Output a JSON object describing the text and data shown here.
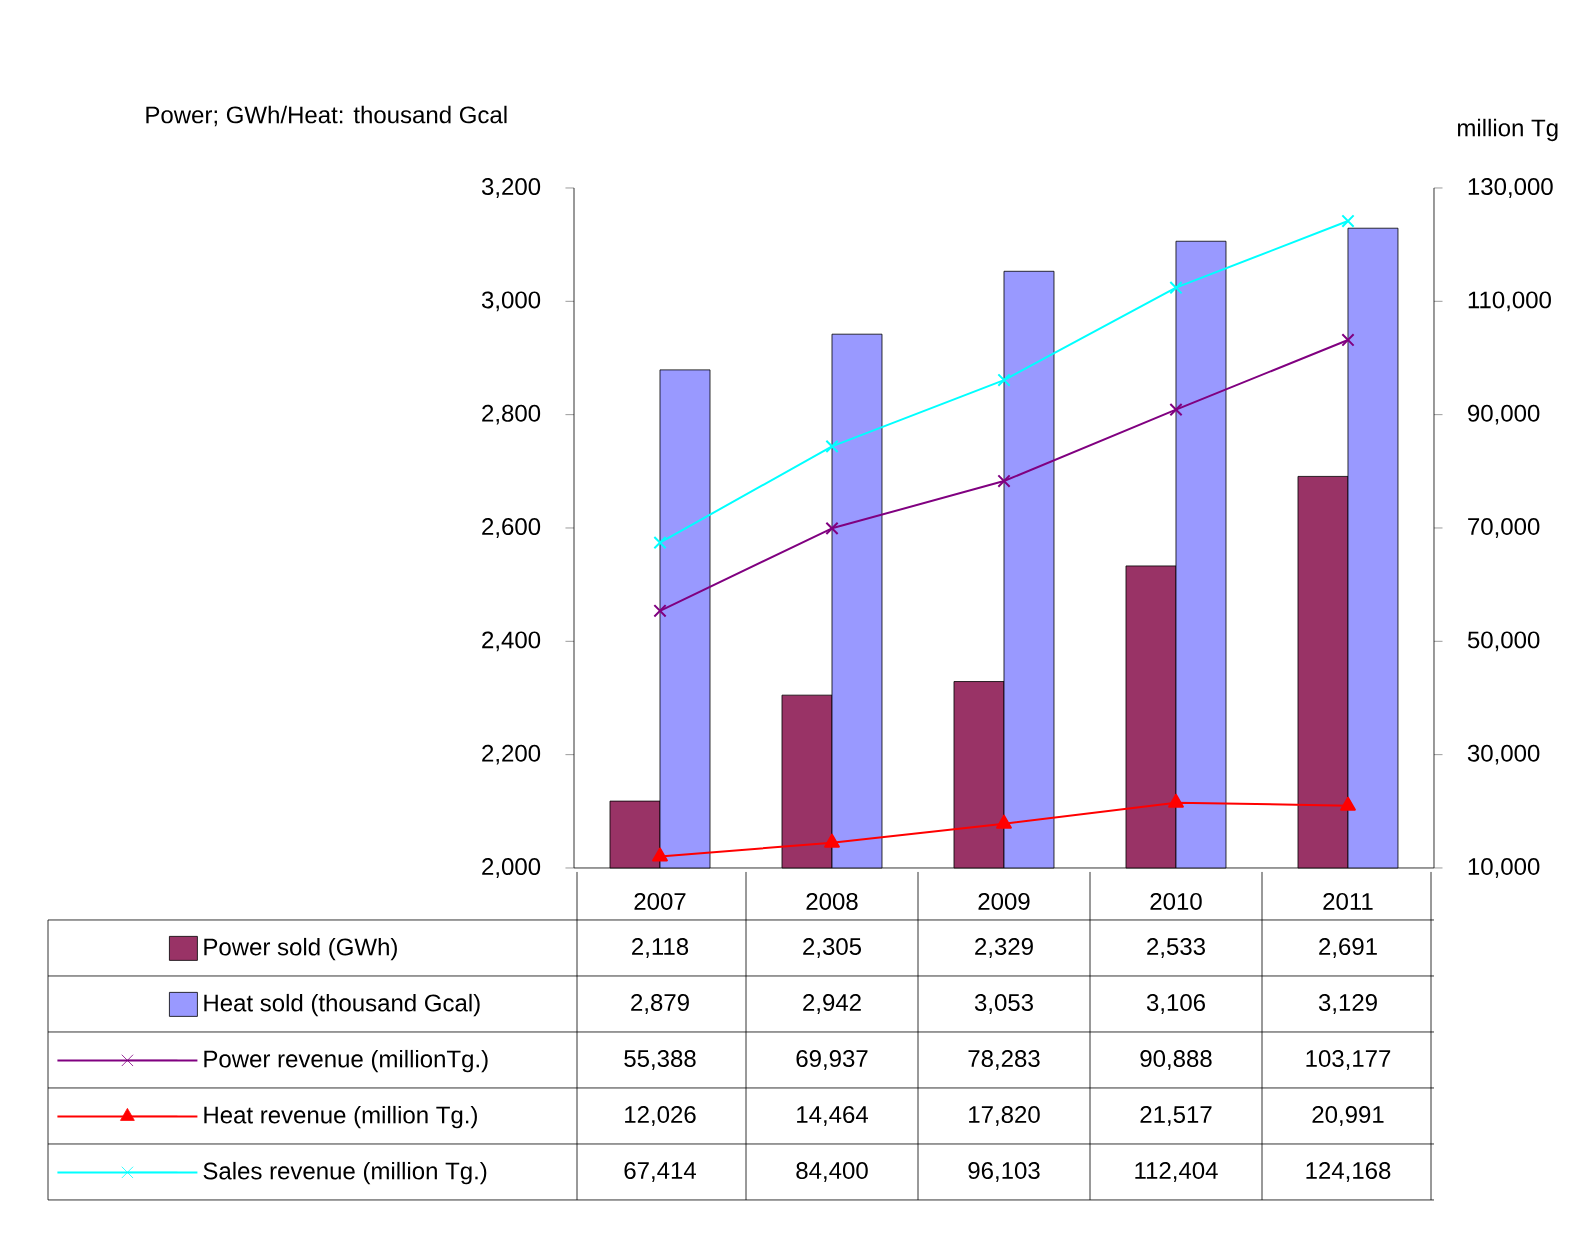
{
  "chart_data": {
    "type": "bar",
    "ylabel": "Power; GWh/Heat: thousand Gcal",
    "y2label": "million Tg",
    "categories": [
      "2007",
      "2008",
      "2009",
      "2010",
      "2011"
    ],
    "series": [
      {
        "name": "Power sold (GWh)",
        "color": "#993366",
        "values": [
          2118,
          2305,
          2329,
          2533,
          2691
        ],
        "value_labels": [
          "2,118",
          "2,305",
          "2,329",
          "2,533",
          "2,691"
        ]
      },
      {
        "name": "Heat sold (thousand Gcal)",
        "color": "#9999ff",
        "values": [
          2879,
          2942,
          3053,
          3106,
          3129
        ],
        "value_labels": [
          "2,879",
          "2,942",
          "3,053",
          "3,106",
          "3,129"
        ]
      },
      {
        "name": "Power revenue (millionTg.)",
        "type": "line",
        "axis": "y2",
        "marker": "cross",
        "color": "#800080",
        "values": [
          55388,
          69937,
          78283,
          90888,
          103177
        ],
        "value_labels": [
          "55,388",
          "69,937",
          "78,283",
          "90,888",
          "103,177"
        ]
      },
      {
        "name": "Heat revenue (million Tg.)",
        "type": "line",
        "axis": "y2",
        "marker": "triangle",
        "color": "#ff0000",
        "values": [
          12026,
          14464,
          17820,
          21517,
          20991
        ],
        "value_labels": [
          "12,026",
          "14,464",
          "17,820",
          "21,517",
          "20,991"
        ]
      },
      {
        "name": "Sales revenue (million Tg.)",
        "type": "line",
        "axis": "y2",
        "marker": "cross",
        "color": "#00ffff",
        "values": [
          67414,
          84400,
          96103,
          112404,
          124168
        ],
        "value_labels": [
          "67,414",
          "84,400",
          "96,103",
          "112,404",
          "124,168"
        ]
      }
    ],
    "ylim": [
      2000,
      3200
    ],
    "yticks": [
      {
        "value": 2000,
        "label": "2,000"
      },
      {
        "value": 2200,
        "label": "2,200"
      },
      {
        "value": 2400,
        "label": "2,400"
      },
      {
        "value": 2600,
        "label": "2,600"
      },
      {
        "value": 2800,
        "label": "2,800"
      },
      {
        "value": 3000,
        "label": "3,000"
      },
      {
        "value": 3200,
        "label": "3,200"
      }
    ],
    "y2lim": [
      10000,
      130000
    ],
    "y2ticks": [
      {
        "value": 10000,
        "label": "10,000"
      },
      {
        "value": 30000,
        "label": "30,000"
      },
      {
        "value": 50000,
        "label": "50,000"
      },
      {
        "value": 70000,
        "label": "70,000"
      },
      {
        "value": 90000,
        "label": "90,000"
      },
      {
        "value": 110000,
        "label": "110,000"
      },
      {
        "value": 130000,
        "label": "130,000"
      }
    ],
    "grid": false,
    "legend": "bottom"
  }
}
